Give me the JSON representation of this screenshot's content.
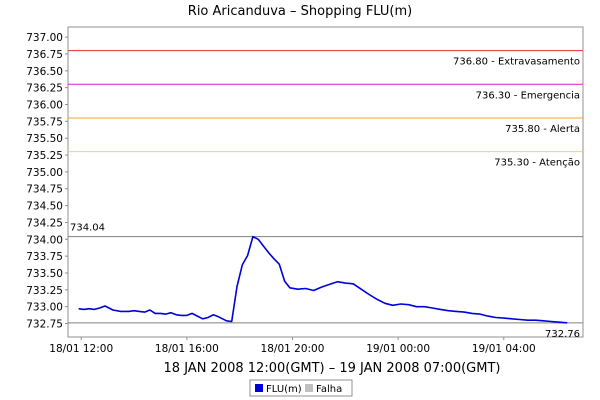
{
  "chart_data": {
    "type": "line",
    "title": "Rio Aricanduva – Shopping FLU(m)",
    "xlabel": "18 JAN 2008 12:00(GMT) – 19 JAN 2008 07:00(GMT)",
    "ylabel": "",
    "ylim": [
      732.55,
      737.15
    ],
    "yticks": [
      {
        "v": 737.0,
        "label": "737.00"
      },
      {
        "v": 736.75,
        "label": "736.75"
      },
      {
        "v": 736.5,
        "label": "736.50"
      },
      {
        "v": 736.25,
        "label": "736.25"
      },
      {
        "v": 736.0,
        "label": "736.00"
      },
      {
        "v": 735.75,
        "label": "735.75"
      },
      {
        "v": 735.5,
        "label": "735.50"
      },
      {
        "v": 735.25,
        "label": "735.25"
      },
      {
        "v": 735.0,
        "label": "735.00"
      },
      {
        "v": 734.75,
        "label": "734.75"
      },
      {
        "v": 734.5,
        "label": "734.50"
      },
      {
        "v": 734.25,
        "label": "734.25"
      },
      {
        "v": 734.0,
        "label": "734.00"
      },
      {
        "v": 733.75,
        "label": "733.75"
      },
      {
        "v": 733.5,
        "label": "733.50"
      },
      {
        "v": 733.25,
        "label": "733.25"
      },
      {
        "v": 733.0,
        "label": "733.00"
      },
      {
        "v": 732.75,
        "label": "732.75"
      }
    ],
    "xlim_hours": [
      11.5,
      31.0
    ],
    "xticks": [
      {
        "h": 12,
        "label": "18/01 12:00"
      },
      {
        "h": 16,
        "label": "18/01 16:00"
      },
      {
        "h": 20,
        "label": "18/01 20:00"
      },
      {
        "h": 24,
        "label": "19/01 00:00"
      },
      {
        "h": 28,
        "label": "19/01 04:00"
      }
    ],
    "thresholds": [
      {
        "value": 736.8,
        "label": "736.80 - Extravasamento",
        "color": "#e03030"
      },
      {
        "value": 736.3,
        "label": "736.30 - Emergencia",
        "color": "#d020d0"
      },
      {
        "value": 735.8,
        "label": "735.80 - Alerta",
        "color": "#f0a030"
      },
      {
        "value": 735.3,
        "label": "735.30 - Atenção",
        "color": "#e8e040"
      }
    ],
    "markers": [
      {
        "value": 734.04,
        "label": "734.04",
        "side": "left"
      },
      {
        "value": 732.76,
        "label": "732.76",
        "side": "right"
      }
    ],
    "series": [
      {
        "name": "FLU(m)",
        "color": "#0000dd",
        "x_hours": [
          11.9,
          12.1,
          12.3,
          12.5,
          12.7,
          12.9,
          13.2,
          13.5,
          13.8,
          14.0,
          14.2,
          14.4,
          14.6,
          14.8,
          15.0,
          15.2,
          15.4,
          15.6,
          15.8,
          16.0,
          16.2,
          16.4,
          16.6,
          16.8,
          17.0,
          17.2,
          17.5,
          17.7,
          17.9,
          18.1,
          18.3,
          18.5,
          18.7,
          18.9,
          19.1,
          19.3,
          19.5,
          19.7,
          19.9,
          20.2,
          20.5,
          20.8,
          21.1,
          21.4,
          21.7,
          22.0,
          22.3,
          22.6,
          22.9,
          23.2,
          23.5,
          23.8,
          24.1,
          24.4,
          24.7,
          25.0,
          25.3,
          25.6,
          25.9,
          26.2,
          26.5,
          26.8,
          27.1,
          27.4,
          27.7,
          28.0,
          28.3,
          28.6,
          28.9,
          29.2,
          29.5,
          29.8,
          30.1,
          30.4
        ],
        "values": [
          732.97,
          732.96,
          732.97,
          732.96,
          732.98,
          733.01,
          732.95,
          732.93,
          732.93,
          732.94,
          732.93,
          732.92,
          732.95,
          732.9,
          732.9,
          732.89,
          732.91,
          732.88,
          732.87,
          732.87,
          732.9,
          732.86,
          732.82,
          732.84,
          732.88,
          732.85,
          732.79,
          732.78,
          733.3,
          733.62,
          733.76,
          734.04,
          734.0,
          733.9,
          733.8,
          733.71,
          733.63,
          733.38,
          733.28,
          733.26,
          733.27,
          733.24,
          733.29,
          733.33,
          733.37,
          733.35,
          733.34,
          733.26,
          733.18,
          733.11,
          733.05,
          733.02,
          733.04,
          733.03,
          733.0,
          733.0,
          732.98,
          732.96,
          732.94,
          732.93,
          732.92,
          732.9,
          732.89,
          732.86,
          732.84,
          732.83,
          732.82,
          732.81,
          732.8,
          732.8,
          732.79,
          732.78,
          732.77,
          732.76
        ]
      }
    ],
    "legend": [
      {
        "name": "FLU(m)",
        "color": "#0000dd"
      },
      {
        "name": "Falha",
        "color": "#c0c0c0"
      }
    ],
    "legend_placement": "bottom-center",
    "grid": false
  }
}
